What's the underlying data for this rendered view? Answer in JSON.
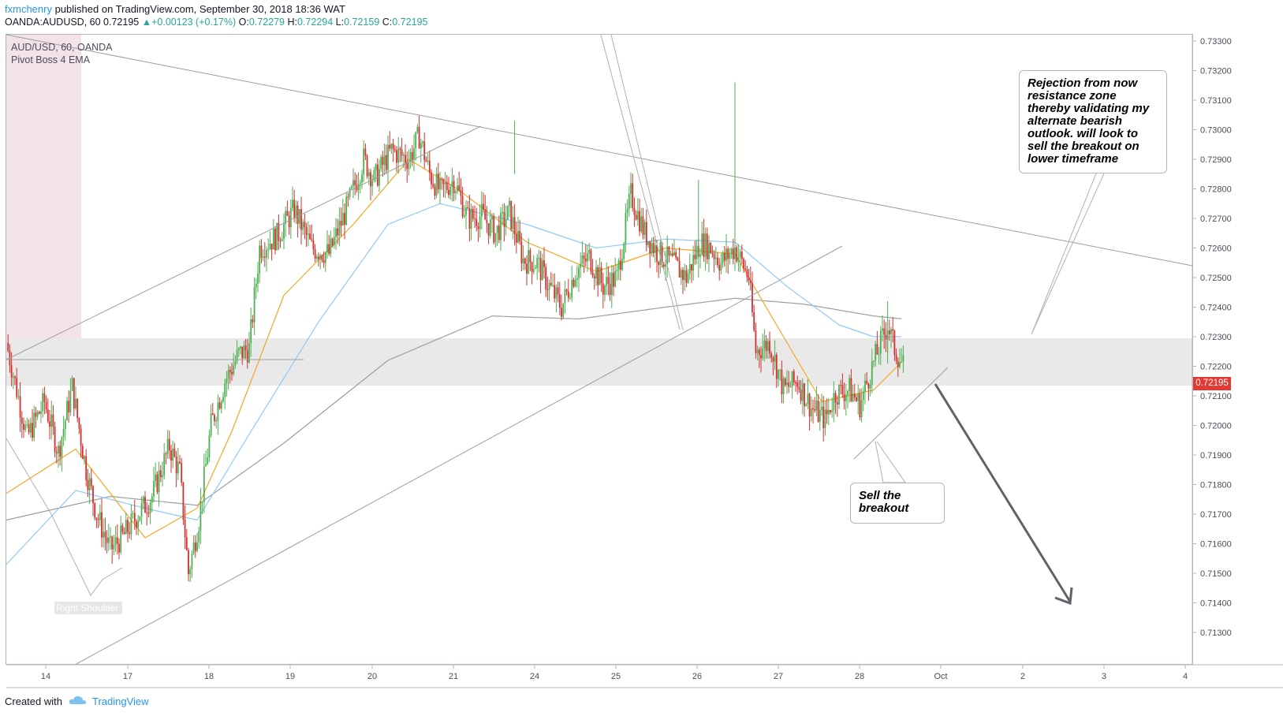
{
  "header": {
    "author": "fxmchenry",
    "published": " published on TradingView.com, September 30, 2018 18:36 WAT",
    "symbol": "OANDA:AUDUSD, 60",
    "last": "0.72195",
    "change_arrow": "▲",
    "change": "+0.00123 (+0.17%)",
    "o_label": "O:",
    "o": "0.72279",
    "h_label": "H:",
    "h": "0.72294",
    "l_label": "L:",
    "l": "0.72159",
    "c_label": "C:",
    "c": "0.72195"
  },
  "legend": {
    "symbol": "AUD/USD, 60, OANDA",
    "indicator": "Pivot Boss 4 EMA"
  },
  "annotations": {
    "rejection": "Rejection from now resistance zone thereby validating my alternate bearish outlook. will look to sell the breakout on lower timeframe",
    "sell": "Sell the breakout",
    "shoulder": "Right Shoulder"
  },
  "footer": {
    "created_with": "Created with",
    "brand": "TradingView"
  },
  "colors": {
    "up": "#26a69a",
    "candle_up": "#4caf50",
    "candle_down": "#d32f2f",
    "ema_fast": "#f5a623",
    "ema_mid": "#90caf9",
    "ema_slow": "#9e9e9e",
    "zone": "#e8e8e8",
    "price_tag": "#e53935"
  },
  "chart_data": {
    "type": "candlestick",
    "symbol": "AUD/USD",
    "timeframe": "60",
    "ylim": [
      0.7125,
      0.7335
    ],
    "y_ticks": [
      "0.73300",
      "0.73200",
      "0.73100",
      "0.73000",
      "0.72900",
      "0.72800",
      "0.72700",
      "0.72600",
      "0.72500",
      "0.72400",
      "0.72300",
      "0.72200",
      "0.72100",
      "0.72000",
      "0.71900",
      "0.71800",
      "0.71700",
      "0.71600",
      "0.71500",
      "0.71400",
      "0.71300"
    ],
    "x_ticks": [
      "14",
      "17",
      "18",
      "19",
      "20",
      "21",
      "24",
      "25",
      "26",
      "27",
      "28",
      "Oct",
      "2",
      "3",
      "4"
    ],
    "last_price": "0.72195",
    "resistance_zone": [
      0.722,
      0.72355
    ],
    "close_path": [
      [
        0,
        0.7228
      ],
      [
        12,
        0.7196
      ],
      [
        22,
        0.7208
      ],
      [
        30,
        0.7191
      ],
      [
        38,
        0.7213
      ],
      [
        46,
        0.7185
      ],
      [
        52,
        0.717
      ],
      [
        60,
        0.7158
      ],
      [
        68,
        0.7163
      ],
      [
        76,
        0.717
      ],
      [
        84,
        0.7176
      ],
      [
        94,
        0.7193
      ],
      [
        100,
        0.7184
      ],
      [
        105,
        0.715
      ],
      [
        111,
        0.7168
      ],
      [
        118,
        0.72
      ],
      [
        126,
        0.7215
      ],
      [
        134,
        0.7224
      ],
      [
        140,
        0.7226
      ],
      [
        146,
        0.726
      ],
      [
        156,
        0.7264
      ],
      [
        166,
        0.7273
      ],
      [
        176,
        0.726
      ],
      [
        186,
        0.7258
      ],
      [
        196,
        0.7273
      ],
      [
        206,
        0.729
      ],
      [
        212,
        0.7283
      ],
      [
        222,
        0.7293
      ],
      [
        232,
        0.729
      ],
      [
        238,
        0.7298
      ],
      [
        244,
        0.7285
      ],
      [
        250,
        0.7279
      ],
      [
        258,
        0.7283
      ],
      [
        266,
        0.727
      ],
      [
        274,
        0.7271
      ],
      [
        282,
        0.7265
      ],
      [
        290,
        0.7272
      ],
      [
        298,
        0.7256
      ],
      [
        306,
        0.7255
      ],
      [
        312,
        0.7248
      ],
      [
        320,
        0.724
      ],
      [
        328,
        0.7252
      ],
      [
        336,
        0.7257
      ],
      [
        344,
        0.7247
      ],
      [
        352,
        0.725
      ],
      [
        360,
        0.7278
      ],
      [
        368,
        0.7265
      ],
      [
        376,
        0.7258
      ],
      [
        384,
        0.7255
      ],
      [
        392,
        0.725
      ],
      [
        400,
        0.7262
      ],
      [
        406,
        0.726
      ],
      [
        412,
        0.7255
      ],
      [
        420,
        0.726
      ],
      [
        428,
        0.725
      ],
      [
        432,
        0.7225
      ],
      [
        440,
        0.7228
      ],
      [
        448,
        0.7212
      ],
      [
        456,
        0.7215
      ],
      [
        464,
        0.7206
      ],
      [
        472,
        0.7202
      ],
      [
        478,
        0.7211
      ],
      [
        486,
        0.7212
      ],
      [
        492,
        0.7207
      ],
      [
        498,
        0.7218
      ],
      [
        504,
        0.7228
      ],
      [
        508,
        0.7234
      ],
      [
        512,
        0.7226
      ],
      [
        517,
        0.722
      ]
    ],
    "ema_fast": [
      [
        0,
        0.7177
      ],
      [
        40,
        0.7192
      ],
      [
        80,
        0.7162
      ],
      [
        110,
        0.7172
      ],
      [
        130,
        0.7198
      ],
      [
        160,
        0.7244
      ],
      [
        200,
        0.7268
      ],
      [
        232,
        0.729
      ],
      [
        260,
        0.728
      ],
      [
        300,
        0.7262
      ],
      [
        340,
        0.7252
      ],
      [
        380,
        0.726
      ],
      [
        420,
        0.7258
      ],
      [
        440,
        0.7238
      ],
      [
        470,
        0.7208
      ],
      [
        500,
        0.7212
      ],
      [
        517,
        0.7222
      ]
    ],
    "ema_mid": [
      [
        0,
        0.7153
      ],
      [
        40,
        0.7178
      ],
      [
        80,
        0.7172
      ],
      [
        110,
        0.7168
      ],
      [
        140,
        0.7197
      ],
      [
        180,
        0.7235
      ],
      [
        220,
        0.7268
      ],
      [
        250,
        0.7275
      ],
      [
        300,
        0.7268
      ],
      [
        340,
        0.726
      ],
      [
        380,
        0.7263
      ],
      [
        420,
        0.7262
      ],
      [
        450,
        0.7247
      ],
      [
        480,
        0.7234
      ],
      [
        500,
        0.723
      ],
      [
        517,
        0.723
      ]
    ],
    "ema_slow": [
      [
        0,
        0.7168
      ],
      [
        60,
        0.7176
      ],
      [
        110,
        0.7173
      ],
      [
        160,
        0.7194
      ],
      [
        220,
        0.7222
      ],
      [
        280,
        0.7237
      ],
      [
        330,
        0.7236
      ],
      [
        380,
        0.724
      ],
      [
        420,
        0.7243
      ],
      [
        460,
        0.7241
      ],
      [
        500,
        0.7237
      ],
      [
        517,
        0.7236
      ]
    ]
  }
}
